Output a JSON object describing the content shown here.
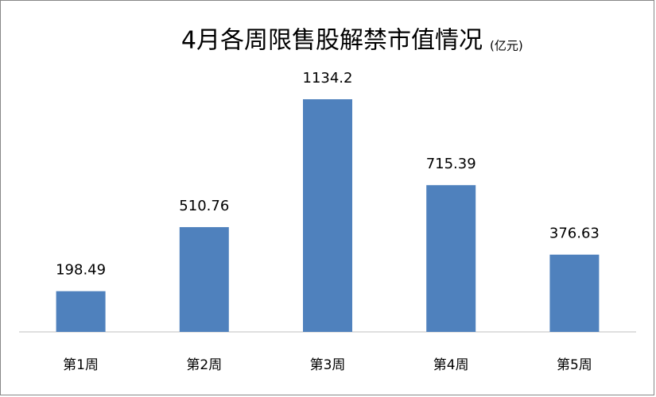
{
  "chart_data": {
    "type": "bar",
    "title": "4月各周限售股解禁市值情况",
    "subtitle": "(亿元)",
    "categories": [
      "第1周",
      "第2周",
      "第3周",
      "第4周",
      "第5周"
    ],
    "values": [
      198.49,
      510.76,
      1134.2,
      715.39,
      376.63
    ],
    "color": "#4f81bd"
  }
}
